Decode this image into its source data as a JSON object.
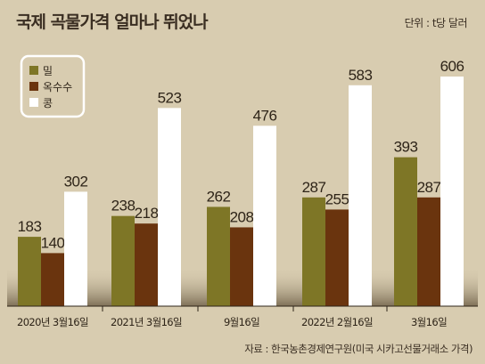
{
  "header": {
    "title": "국제 곡물가격 얼마나 뛰었나",
    "unit": "단위 : t당 달러"
  },
  "footer": {
    "source": "자료 : 한국농촌경제연구원(미국 시카고선물거래소 가격)"
  },
  "colors": {
    "background": "#d8ccb0",
    "wheat": "#7e7626",
    "corn": "#6a340e",
    "soybean": "#ffffff",
    "ground_shadow": "#7a6a50"
  },
  "chart_data": {
    "type": "bar",
    "title": "국제 곡물가격 얼마나 뛰었나",
    "ylabel": "",
    "xlabel": "",
    "ylim": [
      0,
      650
    ],
    "grid": false,
    "legend_position": "top-left",
    "categories": [
      "2020년 3월16일",
      "2021년 3월16일",
      "9월16일",
      "2022년 2월16일",
      "3월16일"
    ],
    "series": [
      {
        "name": "밀",
        "color": "#7e7626",
        "values": [
          183,
          238,
          262,
          287,
          393
        ]
      },
      {
        "name": "옥수수",
        "color": "#6a340e",
        "values": [
          140,
          218,
          208,
          255,
          287
        ]
      },
      {
        "name": "콩",
        "color": "#ffffff",
        "values": [
          302,
          523,
          476,
          583,
          606
        ]
      }
    ]
  }
}
